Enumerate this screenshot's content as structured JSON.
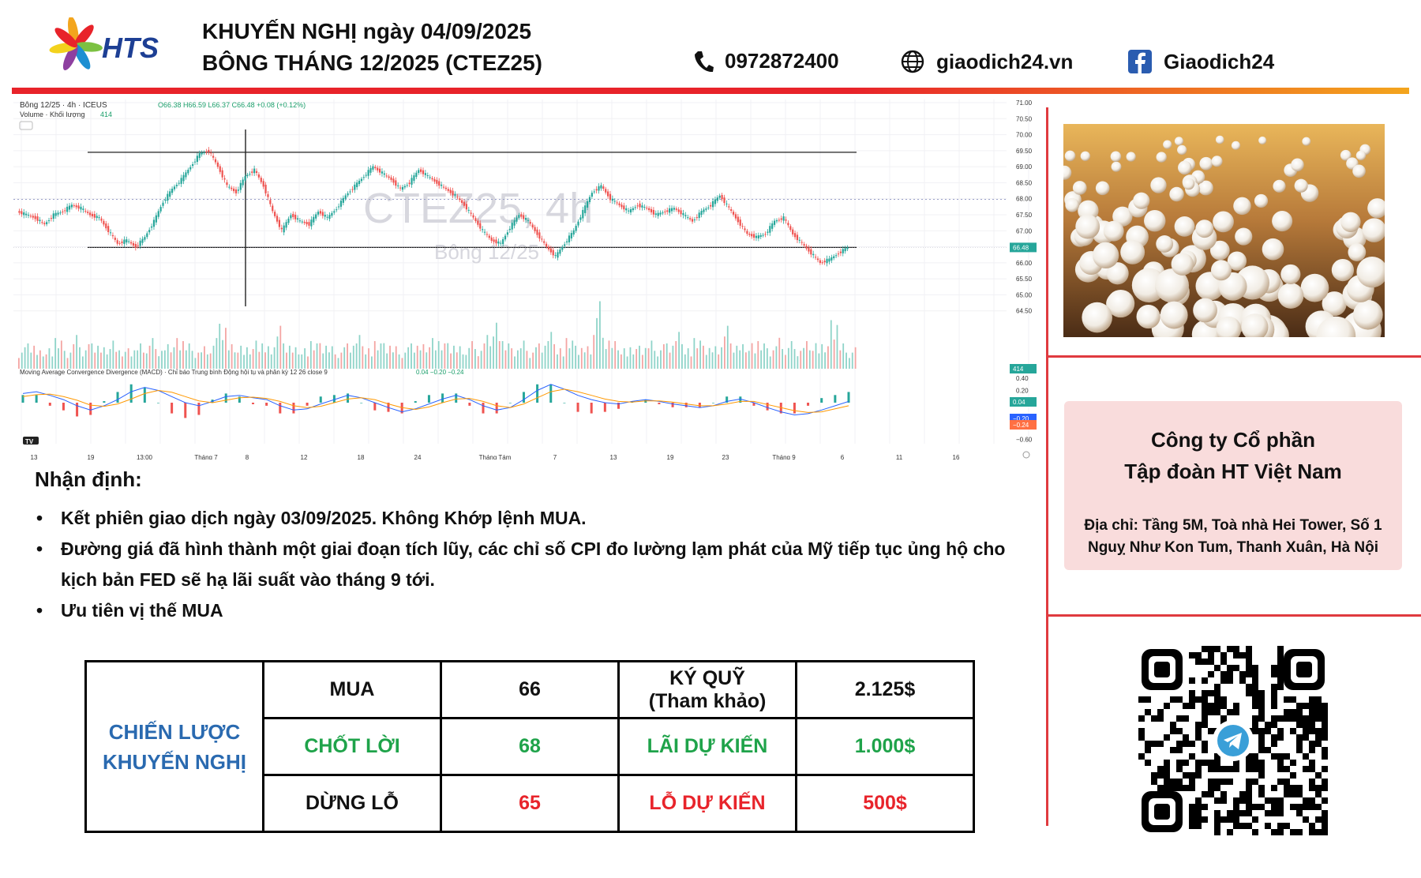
{
  "header": {
    "brand": "HTS",
    "title_line1": "KHUYẾN NGHỊ ngày 04/09/2025",
    "title_line2": "BÔNG THÁNG 12/2025 (CTEZ25)",
    "phone": "0972872400",
    "website": "giaodich24.vn",
    "facebook": "Giaodich24",
    "icons": [
      "phone-icon",
      "globe-icon",
      "facebook-icon"
    ],
    "colors": {
      "brand_blue": "#1d3f94",
      "accent_red": "#e8232a",
      "accent_orange": "#f3a51d"
    }
  },
  "chart": {
    "symbol_line": "Bông 12/25 · 4h · ICEUS",
    "ohlc": "O66.38 H66.59 L66.37 C66.48 +0.08 (+0.12%)",
    "volume_label": "Volume · Khối lượng",
    "volume_value": "414",
    "watermark_main": "CTEZ25, 4h",
    "watermark_sub": "Bông 12/25",
    "macd_label": "Moving Average Convergence Divergence (MACD) · Chỉ báo Trung bình Động hội tụ và phân kỳ 12 26 close 9",
    "macd_values": "0.04  −0.20  −0.24",
    "price_ticks": [
      "71.00",
      "70.50",
      "70.00",
      "69.50",
      "69.00",
      "68.50",
      "68.00",
      "67.50",
      "67.00",
      "66.50",
      "66.00",
      "65.50",
      "65.00",
      "64.50"
    ],
    "macd_ticks": [
      "0.40",
      "0.20",
      "−0.40",
      "−0.60"
    ],
    "last_price": "66.48",
    "volume_badge": "414",
    "macd_badge_1": "0.04",
    "macd_badge_2": "−0.20",
    "macd_badge_3": "−0.24",
    "x_ticks": [
      "13",
      "19",
      "13:00",
      "Tháng 7",
      "8",
      "12",
      "18",
      "24",
      "Tháng Tám",
      "7",
      "13",
      "19",
      "23",
      "Tháng 9",
      "6",
      "11",
      "16"
    ],
    "tv_logo": "TV"
  },
  "chart_data": {
    "type": "line",
    "title": "Bông 12/25 · 4h · ICEUS",
    "ylim": [
      64.0,
      71.0
    ],
    "resistance": 69.45,
    "support": 66.48,
    "dotted_level": 67.98,
    "close_series": [
      67.6,
      67.5,
      67.4,
      67.2,
      67.5,
      67.6,
      67.8,
      67.7,
      67.5,
      67.4,
      67.0,
      66.6,
      66.7,
      66.5,
      66.8,
      67.3,
      67.9,
      68.3,
      68.6,
      69.0,
      69.4,
      69.5,
      69.0,
      68.4,
      68.2,
      68.7,
      68.9,
      68.4,
      67.6,
      67.0,
      67.5,
      67.3,
      67.2,
      67.6,
      67.4,
      67.7,
      68.1,
      68.4,
      68.7,
      69.0,
      68.8,
      68.6,
      68.3,
      68.5,
      68.9,
      68.7,
      68.5,
      68.3,
      68.1,
      67.8,
      67.4,
      67.0,
      66.7,
      66.6,
      67.1,
      67.5,
      67.3,
      66.9,
      66.5,
      66.2,
      66.6,
      67.0,
      67.6,
      68.2,
      68.4,
      68.0,
      67.8,
      67.6,
      67.8,
      67.7,
      67.5,
      67.6,
      67.7,
      67.5,
      67.3,
      67.6,
      67.8,
      68.1,
      67.7,
      67.3,
      66.9,
      66.8,
      66.9,
      67.3,
      67.4,
      66.9,
      66.6,
      66.3,
      66.0,
      66.1,
      66.3,
      66.48
    ],
    "volume_series": [
      7,
      9,
      6,
      8,
      10,
      7,
      12,
      8,
      9,
      7,
      11,
      6,
      8,
      9,
      10,
      7,
      8,
      12,
      9,
      7,
      8,
      10,
      16,
      8,
      9,
      7,
      11,
      8,
      14,
      9,
      7,
      8,
      9,
      10,
      8,
      7,
      9,
      11,
      8,
      9,
      10,
      8,
      7,
      9,
      8,
      12,
      9,
      10,
      8,
      9,
      7,
      11,
      18,
      9,
      8,
      10,
      7,
      9,
      12,
      8,
      10,
      9,
      8,
      22,
      11,
      9,
      8,
      7,
      9,
      10,
      8,
      9,
      12,
      8,
      10,
      9,
      8,
      14,
      9,
      8,
      10,
      9,
      8,
      11,
      9,
      7,
      9,
      10,
      8,
      19,
      9,
      7
    ],
    "macd_series": [
      0.15,
      0.18,
      0.12,
      0.05,
      -0.05,
      -0.12,
      -0.05,
      0.05,
      0.18,
      0.25,
      0.2,
      0.1,
      0.0,
      -0.05,
      0.02,
      0.1,
      0.12,
      0.08,
      0.05,
      -0.05,
      -0.12,
      -0.1,
      -0.02,
      0.05,
      0.12,
      0.08,
      0.0,
      -0.08,
      -0.15,
      -0.1,
      -0.02,
      0.06,
      0.12,
      0.05,
      -0.05,
      -0.12,
      -0.08,
      0.05,
      0.2,
      0.3,
      0.22,
      0.12,
      0.05,
      0.0,
      -0.02,
      0.02,
      0.05,
      0.02,
      -0.02,
      -0.05,
      -0.08,
      -0.05,
      0.02,
      0.06,
      0.0,
      -0.08,
      -0.15,
      -0.2,
      -0.18,
      -0.12,
      -0.05,
      0.02
    ],
    "signal_series": [
      0.1,
      0.13,
      0.14,
      0.1,
      0.04,
      -0.04,
      -0.06,
      -0.02,
      0.06,
      0.15,
      0.2,
      0.17,
      0.1,
      0.03,
      0.0,
      0.04,
      0.08,
      0.09,
      0.07,
      0.02,
      -0.05,
      -0.08,
      -0.06,
      0.0,
      0.06,
      0.08,
      0.05,
      -0.02,
      -0.08,
      -0.11,
      -0.07,
      0.0,
      0.06,
      0.07,
      0.02,
      -0.05,
      -0.08,
      -0.02,
      0.08,
      0.18,
      0.22,
      0.18,
      0.12,
      0.06,
      0.02,
      0.01,
      0.03,
      0.03,
      0.01,
      -0.02,
      -0.05,
      -0.05,
      -0.02,
      0.02,
      0.02,
      -0.03,
      -0.08,
      -0.13,
      -0.16,
      -0.15,
      -0.1,
      -0.05
    ]
  },
  "right": {
    "company_line1": "Công ty Cổ phần",
    "company_line2": "Tập đoàn HT Việt Nam",
    "address": "Địa chỉ: Tầng 5M, Toà nhà Hei Tower, Số 1 Nguỵ Như Kon Tum, Thanh Xuân, Hà Nội",
    "company_bg": "#f9dcdc",
    "divider_color": "#e03a3f"
  },
  "analysis": {
    "heading": "Nhận định:",
    "bullets": [
      "Kết phiên giao dịch ngày 03/09/2025. Không Khớp lệnh MUA.",
      "Đường giá đã hình thành một giai đoạn tích lũy, các chỉ số CPI đo lường lạm phát của Mỹ tiếp tục ủng hộ cho kịch bản FED sẽ hạ lãi suất vào tháng 9 tới.",
      "Ưu tiên vị thế MUA"
    ]
  },
  "strategy": {
    "label_line1": "CHIẾN LƯỢC",
    "label_line2": "KHUYẾN NGHỊ",
    "row1": [
      "MUA",
      "66",
      "KÝ QUỸ",
      "(Tham khảo)",
      "2.125$"
    ],
    "row2": [
      "CHỐT LỜI",
      "68",
      "LÃI DỰ KIẾN",
      "1.000$"
    ],
    "row3": [
      "DỪNG LỖ",
      "65",
      "LỖ DỰ KIẾN",
      "500$"
    ],
    "colors": {
      "label": "#2a6ab0",
      "green": "#1fa34a",
      "red": "#e8242b"
    }
  }
}
